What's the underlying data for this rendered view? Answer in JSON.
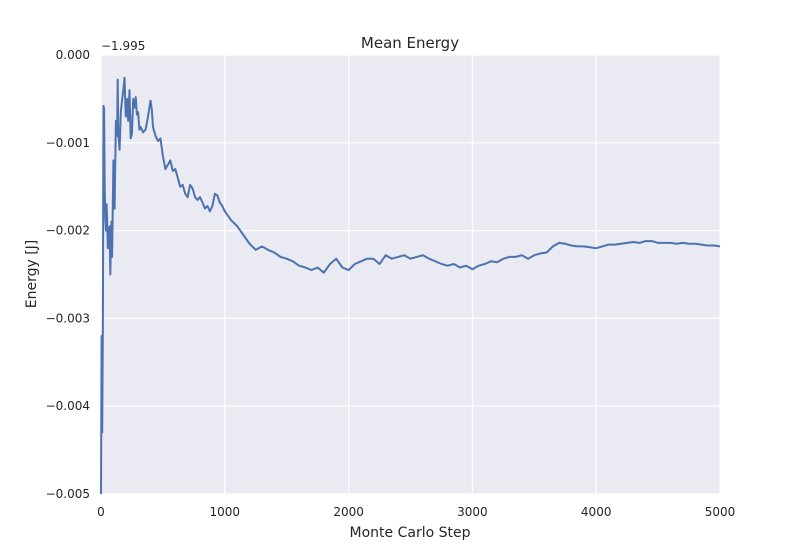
{
  "chart_data": {
    "type": "line",
    "title": "Mean Energy",
    "xlabel": "Monte Carlo Step",
    "ylabel": "Energy [J]",
    "y_offset_label": "−1.995",
    "y_offset": -1.995,
    "xlim": [
      0,
      5000
    ],
    "ylim": [
      -0.005,
      0.0
    ],
    "xticks": [
      0,
      1000,
      2000,
      3000,
      4000,
      5000
    ],
    "xtick_labels": [
      "0",
      "1000",
      "2000",
      "3000",
      "4000",
      "5000"
    ],
    "yticks": [
      0.0,
      -0.001,
      -0.002,
      -0.003,
      -0.004,
      -0.005
    ],
    "ytick_labels": [
      "0.000",
      "−0.001",
      "−0.002",
      "−0.003",
      "−0.004",
      "−0.005"
    ],
    "grid": true,
    "line_color": "#4c72b0",
    "plot_background": "#eaeaf2",
    "series": [
      {
        "name": "Mean Energy",
        "x": [
          0,
          5,
          10,
          15,
          20,
          25,
          30,
          35,
          40,
          45,
          50,
          55,
          60,
          65,
          70,
          75,
          80,
          85,
          90,
          100,
          110,
          115,
          120,
          125,
          130,
          135,
          140,
          150,
          160,
          170,
          180,
          190,
          200,
          210,
          220,
          230,
          240,
          250,
          260,
          270,
          280,
          290,
          300,
          310,
          320,
          340,
          360,
          380,
          400,
          410,
          420,
          440,
          460,
          480,
          500,
          520,
          540,
          560,
          580,
          600,
          620,
          640,
          660,
          680,
          700,
          720,
          740,
          760,
          780,
          800,
          820,
          840,
          860,
          880,
          900,
          920,
          940,
          960,
          980,
          1000,
          1050,
          1100,
          1150,
          1200,
          1250,
          1300,
          1350,
          1400,
          1450,
          1500,
          1550,
          1600,
          1650,
          1700,
          1750,
          1800,
          1850,
          1900,
          1950,
          2000,
          2050,
          2100,
          2150,
          2200,
          2250,
          2300,
          2350,
          2400,
          2450,
          2500,
          2550,
          2600,
          2650,
          2700,
          2750,
          2800,
          2850,
          2900,
          2950,
          3000,
          3050,
          3100,
          3150,
          3200,
          3250,
          3300,
          3350,
          3400,
          3450,
          3500,
          3550,
          3600,
          3650,
          3700,
          3750,
          3800,
          3850,
          3900,
          3950,
          4000,
          4050,
          4100,
          4150,
          4200,
          4250,
          4300,
          4350,
          4400,
          4450,
          4500,
          4550,
          4600,
          4650,
          4700,
          4750,
          4800,
          4850,
          4900,
          4950,
          5000
        ],
        "y": [
          -0.005,
          -0.0032,
          -0.0043,
          -0.003,
          -0.00058,
          -0.00062,
          -0.0015,
          -0.00185,
          -0.002,
          -0.0017,
          -0.0019,
          -0.0022,
          -0.0021,
          -0.002,
          -0.00195,
          -0.0025,
          -0.0021,
          -0.0019,
          -0.0023,
          -0.0012,
          -0.00175,
          -0.00128,
          -0.00075,
          -0.0008,
          -0.00092,
          -0.00028,
          -0.0009,
          -0.00108,
          -0.00065,
          -0.00052,
          -0.0004,
          -0.00026,
          -0.0007,
          -0.0005,
          -0.00075,
          -0.0004,
          -0.00095,
          -0.0009,
          -0.0005,
          -0.0006,
          -0.00048,
          -0.00068,
          -0.00065,
          -0.00085,
          -0.00082,
          -0.00088,
          -0.00085,
          -0.0007,
          -0.00052,
          -0.00062,
          -0.00082,
          -0.00092,
          -0.00098,
          -0.00095,
          -0.00115,
          -0.0013,
          -0.00125,
          -0.0012,
          -0.00132,
          -0.0013,
          -0.0014,
          -0.0015,
          -0.00148,
          -0.00158,
          -0.00162,
          -0.00148,
          -0.00152,
          -0.00162,
          -0.00165,
          -0.00162,
          -0.00168,
          -0.00175,
          -0.00172,
          -0.00178,
          -0.00172,
          -0.00158,
          -0.0016,
          -0.00168,
          -0.00172,
          -0.00178,
          -0.00188,
          -0.00195,
          -0.00205,
          -0.00215,
          -0.00222,
          -0.00218,
          -0.00222,
          -0.00225,
          -0.0023,
          -0.00232,
          -0.00235,
          -0.0024,
          -0.00242,
          -0.00245,
          -0.00242,
          -0.00248,
          -0.00238,
          -0.00232,
          -0.00242,
          -0.00245,
          -0.00238,
          -0.00235,
          -0.00232,
          -0.00232,
          -0.00238,
          -0.00228,
          -0.00232,
          -0.0023,
          -0.00228,
          -0.00232,
          -0.0023,
          -0.00228,
          -0.00232,
          -0.00235,
          -0.00238,
          -0.0024,
          -0.00238,
          -0.00242,
          -0.0024,
          -0.00244,
          -0.0024,
          -0.00238,
          -0.00235,
          -0.00236,
          -0.00232,
          -0.0023,
          -0.0023,
          -0.00228,
          -0.00232,
          -0.00228,
          -0.00226,
          -0.00225,
          -0.00218,
          -0.00214,
          -0.00215,
          -0.00217,
          -0.00218,
          -0.00218,
          -0.00219,
          -0.0022,
          -0.00218,
          -0.00216,
          -0.00216,
          -0.00215,
          -0.00214,
          -0.00213,
          -0.00214,
          -0.00212,
          -0.00212,
          -0.00214,
          -0.00214,
          -0.00214,
          -0.00215,
          -0.00214,
          -0.00215,
          -0.00215,
          -0.00216,
          -0.00217,
          -0.00217,
          -0.00218
        ]
      }
    ]
  }
}
